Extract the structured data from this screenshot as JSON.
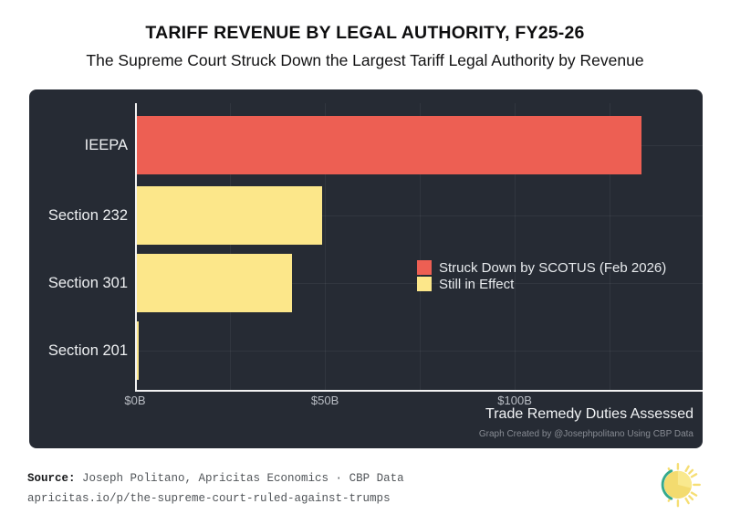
{
  "header": {
    "title": "TARIFF REVENUE BY LEGAL AUTHORITY, FY25-26",
    "subtitle": "The Supreme Court Struck Down the Largest Tariff Legal Authority by Revenue"
  },
  "chart_data": {
    "type": "bar",
    "orientation": "horizontal",
    "title": "TARIFF REVENUE BY LEGAL AUTHORITY, FY25-26",
    "subtitle": "The Supreme Court Struck Down the Largest Tariff Legal Authority by Revenue",
    "categories": [
      "IEEPA",
      "Section 232",
      "Section 301",
      "Section 201"
    ],
    "values": [
      133,
      49,
      41,
      0.5
    ],
    "value_unit": "billions of USD",
    "series_by_category": [
      "struck_down",
      "in_effect",
      "in_effect",
      "in_effect"
    ],
    "xlabel": "Trade Remedy Duties Assessed",
    "xlim": [
      0,
      149
    ],
    "minor_grid_interval": 25,
    "grid": "on",
    "x_ticks": [
      {
        "value": 0,
        "label": "$0B"
      },
      {
        "value": 50,
        "label": "$50B"
      },
      {
        "value": 100,
        "label": "$100B"
      }
    ],
    "legend_position": "center-right",
    "legend": [
      {
        "key": "struck_down",
        "label": "Struck Down by SCOTUS (Feb 2026)",
        "color": "#ED5F53"
      },
      {
        "key": "in_effect",
        "label": "Still in Effect",
        "color": "#FCE78A"
      }
    ],
    "credit": "Graph Created by @Josephpolitano Using CBP Data",
    "colors": {
      "struck_down": "#ED5F53",
      "in_effect": "#FCE78A",
      "panel_bg": "#262B34",
      "axis": "#F2F2F2"
    }
  },
  "footer": {
    "source_label": "Source:",
    "source_text": " Joseph Politano, Apricitas Economics · CBP Data",
    "url": "apricitas.io/p/the-supreme-court-ruled-against-trumps",
    "logo_icon": "apricitas-sun-logo"
  }
}
